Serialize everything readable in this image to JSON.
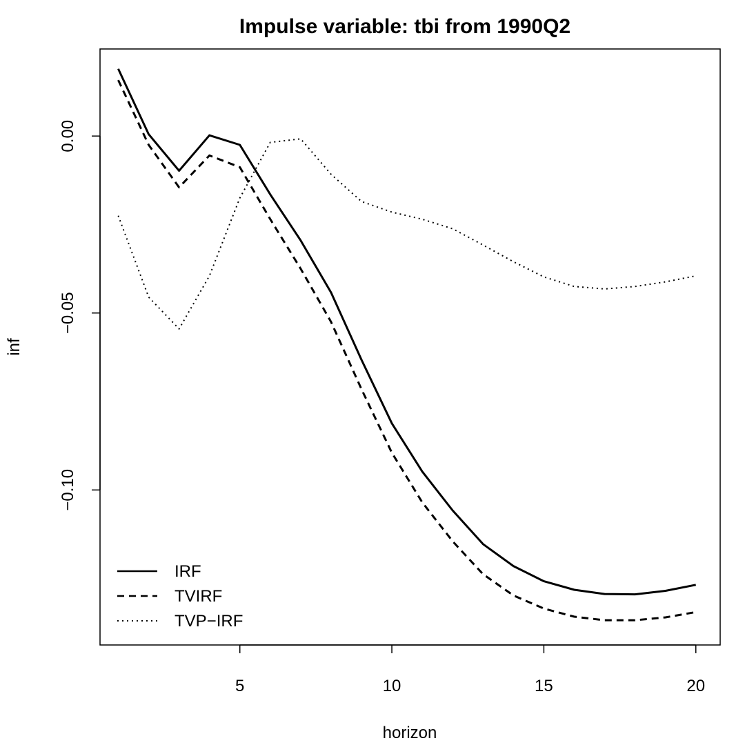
{
  "chart_data": {
    "type": "line",
    "title": "Impulse variable: tbi from 1990Q2",
    "xlabel": "horizon",
    "ylabel": "inf",
    "xlim": [
      0.4,
      20.8
    ],
    "ylim": [
      -0.1438,
      0.0246
    ],
    "x_ticks": [
      5,
      10,
      15,
      20
    ],
    "x_tick_labels": [
      "5",
      "10",
      "15",
      "20"
    ],
    "y_ticks": [
      0,
      -0.05,
      -0.1
    ],
    "y_tick_labels": [
      "0.00",
      "−0.05",
      "−0.10"
    ],
    "grid": false,
    "legend_position": "bottom-left",
    "x": [
      1,
      2,
      3,
      4,
      5,
      6,
      7,
      8,
      9,
      10,
      11,
      12,
      13,
      14,
      15,
      16,
      17,
      18,
      19,
      20
    ],
    "series": [
      {
        "name": "IRF",
        "style": "solid",
        "color": "#000000",
        "values": [
          0.019,
          0.0005,
          -0.0098,
          0.0002,
          -0.0025,
          -0.0165,
          -0.0295,
          -0.0442,
          -0.0632,
          -0.0812,
          -0.0948,
          -0.1058,
          -0.1153,
          -0.1215,
          -0.1258,
          -0.1282,
          -0.1294,
          -0.1295,
          -0.1285,
          -0.1268
        ]
      },
      {
        "name": "TVIRF",
        "style": "dashed",
        "color": "#000000",
        "values": [
          0.0158,
          -0.0025,
          -0.0145,
          -0.0055,
          -0.0088,
          -0.0235,
          -0.0375,
          -0.0525,
          -0.0715,
          -0.0895,
          -0.1035,
          -0.1145,
          -0.1238,
          -0.1298,
          -0.1335,
          -0.1358,
          -0.1368,
          -0.1368,
          -0.136,
          -0.1345
        ]
      },
      {
        "name": "TVP−IRF",
        "style": "dotted",
        "color": "#000000",
        "values": [
          -0.0225,
          -0.0455,
          -0.0545,
          -0.0395,
          -0.0175,
          -0.0018,
          -0.0008,
          -0.0108,
          -0.0185,
          -0.0215,
          -0.0235,
          -0.0262,
          -0.0308,
          -0.0355,
          -0.0398,
          -0.0425,
          -0.0432,
          -0.0425,
          -0.0412,
          -0.0395
        ]
      }
    ]
  }
}
